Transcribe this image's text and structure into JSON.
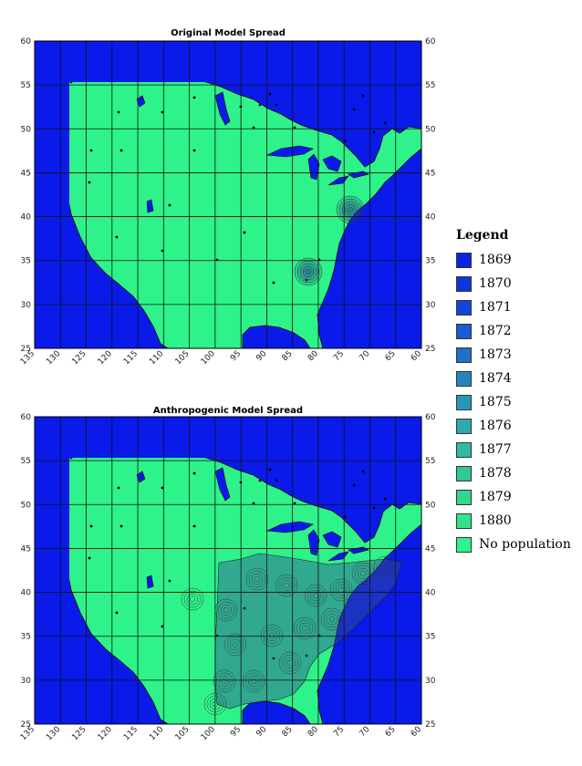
{
  "colors": {
    "ocean": "#0a1ae8",
    "land": "#2ef28a",
    "grid": "#111111"
  },
  "maps": [
    {
      "title": "Original Model Spread",
      "lat_ticks": [
        "60",
        "55",
        "50",
        "45",
        "40",
        "35",
        "30",
        "25"
      ],
      "lon_ticks": [
        "135",
        "130",
        "125",
        "120",
        "115",
        "110",
        "105",
        "100",
        "95",
        "90",
        "85",
        "80",
        "75",
        "70",
        "65",
        "60"
      ],
      "spread_level": "sparse"
    },
    {
      "title": "Anthropogenic Model Spread",
      "lat_ticks": [
        "60",
        "55",
        "50",
        "45",
        "40",
        "35",
        "30",
        "25"
      ],
      "lon_ticks": [
        "135",
        "130",
        "125",
        "120",
        "115",
        "110",
        "105",
        "100",
        "95",
        "90",
        "85",
        "80",
        "75",
        "70",
        "65",
        "60"
      ],
      "spread_level": "widespread"
    }
  ],
  "legend": {
    "title": "Legend",
    "items": [
      {
        "label": "1869",
        "color": "#0a24e0"
      },
      {
        "label": "1870",
        "color": "#0d35dc"
      },
      {
        "label": "1871",
        "color": "#1147d6"
      },
      {
        "label": "1872",
        "color": "#1a5cd1"
      },
      {
        "label": "1873",
        "color": "#1f72c9"
      },
      {
        "label": "1874",
        "color": "#2584c0"
      },
      {
        "label": "1875",
        "color": "#2a96b6"
      },
      {
        "label": "1876",
        "color": "#2ea9ad"
      },
      {
        "label": "1877",
        "color": "#30b9a3"
      },
      {
        "label": "1878",
        "color": "#32c799"
      },
      {
        "label": "1879",
        "color": "#33d68f"
      },
      {
        "label": "1880",
        "color": "#34e388"
      },
      {
        "label": "No population",
        "color": "#2ef28a"
      }
    ]
  }
}
